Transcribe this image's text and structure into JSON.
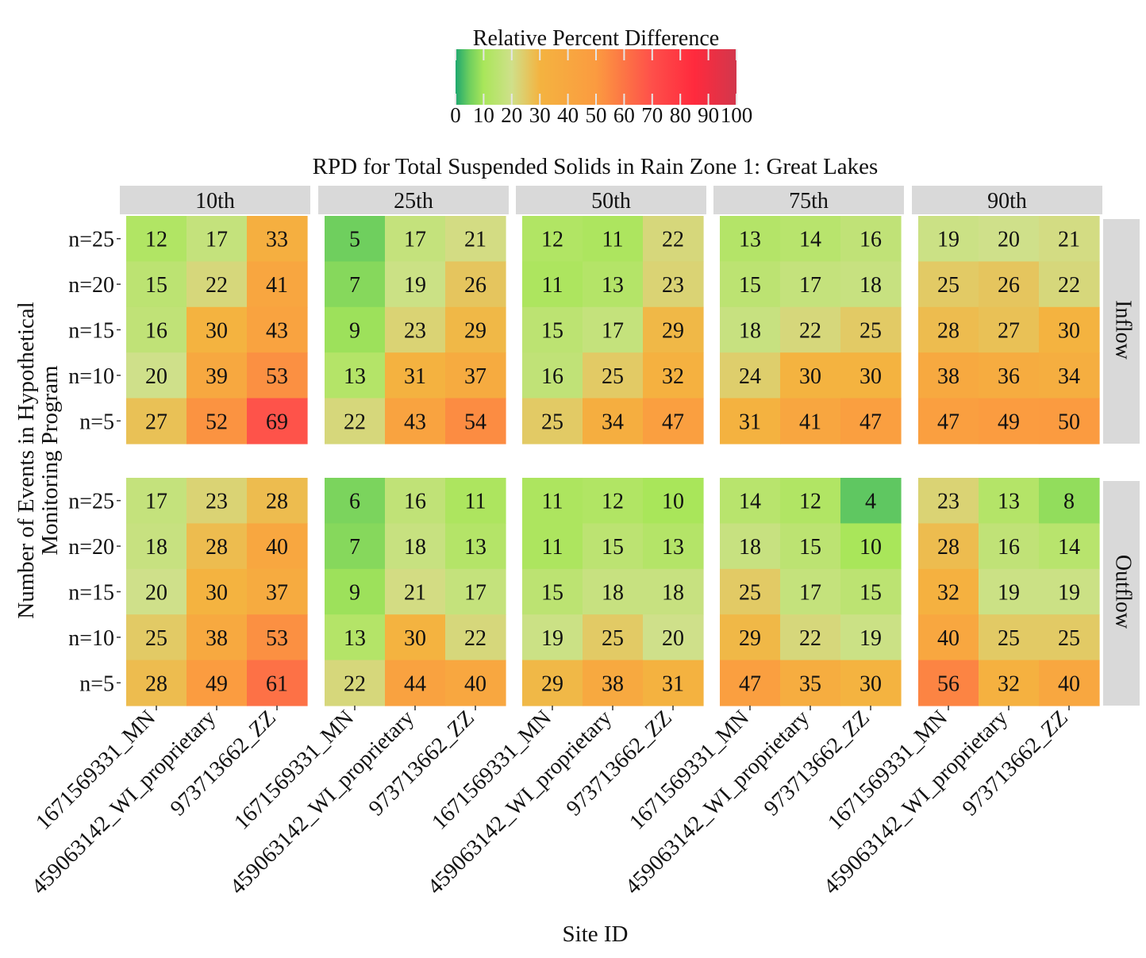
{
  "chart_data": {
    "type": "heatmap",
    "title": "RPD for Total Suspended Solids in Rain Zone 1: Great Lakes",
    "xlabel": "Site ID",
    "ylabel": "Number of Events in Hypothetical Monitoring Program",
    "legend": {
      "title": "Relative Percent Difference",
      "placement": "top",
      "range": [
        0,
        100
      ],
      "ticks": [
        "0",
        "10",
        "20",
        "30",
        "40",
        "50",
        "60",
        "70",
        "80",
        "90",
        "100"
      ],
      "color_stops": [
        {
          "value": 0,
          "color": "#1fa86f"
        },
        {
          "value": 5,
          "color": "#6fcf5e"
        },
        {
          "value": 10,
          "color": "#a9e65a"
        },
        {
          "value": 20,
          "color": "#cfe08a"
        },
        {
          "value": 30,
          "color": "#f4b340"
        },
        {
          "value": 50,
          "color": "#fb9b40"
        },
        {
          "value": 70,
          "color": "#fe4f4a"
        },
        {
          "value": 85,
          "color": "#ff2a3d"
        },
        {
          "value": 100,
          "color": "#d2374c"
        }
      ]
    },
    "columns": [
      "10th",
      "25th",
      "50th",
      "75th",
      "90th"
    ],
    "rows": [
      "Inflow",
      "Outflow"
    ],
    "sites": [
      "1671569331_MN",
      "459063142_WI_proprietary",
      "973713662_ZZ"
    ],
    "events": [
      "n=25",
      "n=20",
      "n=15",
      "n=10",
      "n=5"
    ],
    "panels": [
      {
        "row": "Inflow",
        "col": "10th",
        "values": [
          [
            12,
            17,
            33
          ],
          [
            15,
            22,
            41
          ],
          [
            16,
            30,
            43
          ],
          [
            20,
            39,
            53
          ],
          [
            27,
            52,
            69
          ]
        ]
      },
      {
        "row": "Inflow",
        "col": "25th",
        "values": [
          [
            5,
            17,
            21
          ],
          [
            7,
            19,
            26
          ],
          [
            9,
            23,
            29
          ],
          [
            13,
            31,
            37
          ],
          [
            22,
            43,
            54
          ]
        ]
      },
      {
        "row": "Inflow",
        "col": "50th",
        "values": [
          [
            12,
            11,
            22
          ],
          [
            11,
            13,
            23
          ],
          [
            15,
            17,
            29
          ],
          [
            16,
            25,
            32
          ],
          [
            25,
            34,
            47
          ]
        ]
      },
      {
        "row": "Inflow",
        "col": "75th",
        "values": [
          [
            13,
            14,
            16
          ],
          [
            15,
            17,
            18
          ],
          [
            18,
            22,
            25
          ],
          [
            24,
            30,
            30
          ],
          [
            31,
            41,
            47
          ]
        ]
      },
      {
        "row": "Inflow",
        "col": "90th",
        "values": [
          [
            19,
            20,
            21
          ],
          [
            25,
            26,
            22
          ],
          [
            28,
            27,
            30
          ],
          [
            38,
            36,
            34
          ],
          [
            47,
            49,
            50
          ]
        ]
      },
      {
        "row": "Outflow",
        "col": "10th",
        "values": [
          [
            17,
            23,
            28
          ],
          [
            18,
            28,
            40
          ],
          [
            20,
            30,
            37
          ],
          [
            25,
            38,
            53
          ],
          [
            28,
            49,
            61
          ]
        ]
      },
      {
        "row": "Outflow",
        "col": "25th",
        "values": [
          [
            6,
            16,
            11
          ],
          [
            7,
            18,
            13
          ],
          [
            9,
            21,
            17
          ],
          [
            13,
            30,
            22
          ],
          [
            22,
            44,
            40
          ]
        ]
      },
      {
        "row": "Outflow",
        "col": "50th",
        "values": [
          [
            11,
            12,
            10
          ],
          [
            11,
            15,
            13
          ],
          [
            15,
            18,
            18
          ],
          [
            19,
            25,
            20
          ],
          [
            29,
            38,
            31
          ]
        ]
      },
      {
        "row": "Outflow",
        "col": "75th",
        "values": [
          [
            14,
            12,
            4
          ],
          [
            18,
            15,
            10
          ],
          [
            25,
            17,
            15
          ],
          [
            29,
            22,
            19
          ],
          [
            47,
            35,
            30
          ]
        ]
      },
      {
        "row": "Outflow",
        "col": "90th",
        "values": [
          [
            23,
            13,
            8
          ],
          [
            28,
            16,
            14
          ],
          [
            32,
            19,
            19
          ],
          [
            40,
            25,
            25
          ],
          [
            56,
            32,
            40
          ]
        ]
      }
    ]
  }
}
